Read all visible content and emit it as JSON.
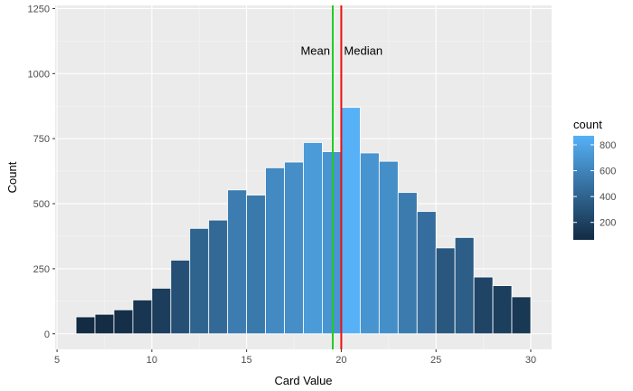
{
  "chart_data": {
    "type": "bar",
    "subtype": "histogram",
    "title": "",
    "xlabel": "Card Value",
    "ylabel": "Count",
    "xlim": [
      4.9,
      31.1
    ],
    "ylim": [
      -60,
      1262
    ],
    "x_ticks": [
      5,
      10,
      15,
      20,
      25,
      30
    ],
    "y_ticks": [
      0,
      250,
      500,
      750,
      1000,
      1250
    ],
    "bin_width": 1,
    "bins": [
      {
        "x": 6.5,
        "count": 65
      },
      {
        "x": 7.5,
        "count": 75
      },
      {
        "x": 8.5,
        "count": 92
      },
      {
        "x": 9.5,
        "count": 130
      },
      {
        "x": 10.5,
        "count": 175
      },
      {
        "x": 11.5,
        "count": 283
      },
      {
        "x": 12.5,
        "count": 405
      },
      {
        "x": 13.5,
        "count": 437
      },
      {
        "x": 14.5,
        "count": 553
      },
      {
        "x": 15.5,
        "count": 533
      },
      {
        "x": 16.5,
        "count": 638
      },
      {
        "x": 17.5,
        "count": 660
      },
      {
        "x": 18.5,
        "count": 735
      },
      {
        "x": 19.5,
        "count": 700
      },
      {
        "x": 20.5,
        "count": 870
      },
      {
        "x": 21.5,
        "count": 695
      },
      {
        "x": 22.5,
        "count": 663
      },
      {
        "x": 23.5,
        "count": 543
      },
      {
        "x": 24.5,
        "count": 470
      },
      {
        "x": 25.5,
        "count": 330
      },
      {
        "x": 26.5,
        "count": 370
      },
      {
        "x": 27.5,
        "count": 218
      },
      {
        "x": 28.5,
        "count": 185
      },
      {
        "x": 29.5,
        "count": 142
      }
    ],
    "reference_lines": [
      {
        "label": "Mean",
        "x": 19.55,
        "color": "#22cc22",
        "label_side": "left"
      },
      {
        "label": "Median",
        "x": 20.0,
        "color": "#ee1111",
        "label_side": "right"
      }
    ],
    "annotation_y": 1090,
    "legend": {
      "title": "count",
      "placement": "right",
      "range": [
        65,
        870
      ],
      "ticks": [
        200,
        400,
        600,
        800
      ],
      "low_color": "#132B43",
      "high_color": "#56B1F7"
    },
    "panel_background": "#EBEBEB",
    "grid": true,
    "bar_outline": "#ffffff"
  }
}
